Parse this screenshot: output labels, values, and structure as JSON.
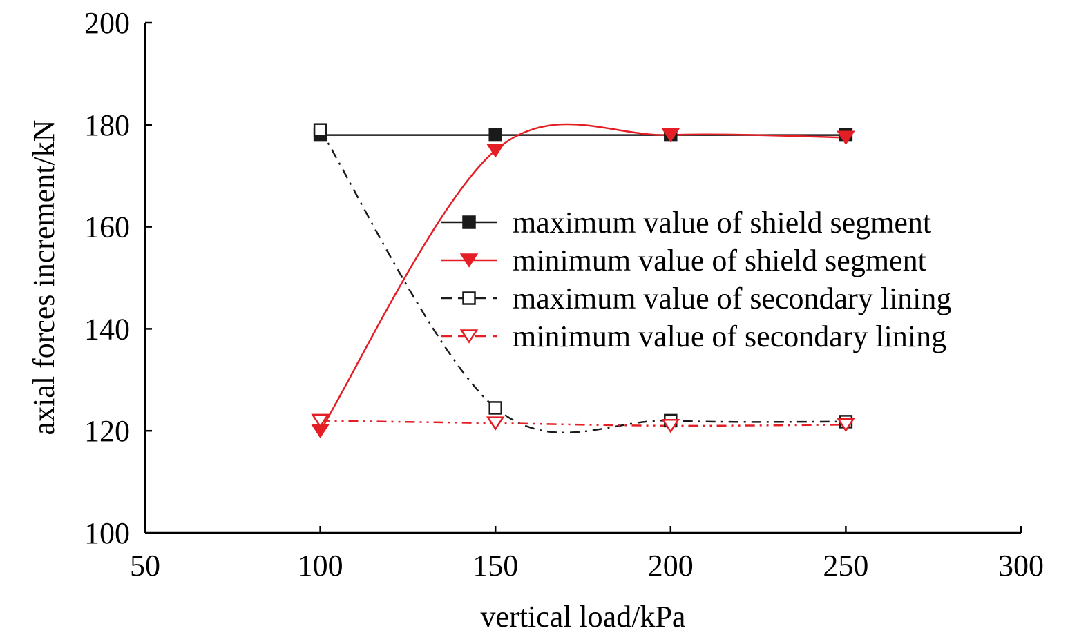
{
  "chart_data": {
    "type": "line",
    "title": "",
    "xlabel": "vertical load/kPa",
    "ylabel": "axial forces increment/kN",
    "xlim": [
      50,
      300
    ],
    "ylim": [
      100,
      200
    ],
    "xticks": [
      50,
      100,
      150,
      200,
      250,
      300
    ],
    "yticks": [
      100,
      120,
      140,
      160,
      180,
      200
    ],
    "grid": false,
    "legend_position": "center-right",
    "series": [
      {
        "name": "maximum value of shield segment",
        "color": "#1a1a1a",
        "marker": "filled-square",
        "line": "solid",
        "x": [
          100,
          150,
          200,
          250
        ],
        "y": [
          178,
          178,
          178,
          178
        ]
      },
      {
        "name": "minimum value of shield segment",
        "color": "#e31e24",
        "marker": "filled-triangle-down",
        "line": "solid",
        "x": [
          100,
          150,
          200,
          250
        ],
        "y": [
          120,
          175,
          178,
          177.5
        ]
      },
      {
        "name": "maximum value of secondary lining",
        "color": "#1a1a1a",
        "marker": "open-square",
        "line": "dash-dot",
        "x": [
          100,
          150,
          200,
          250
        ],
        "y": [
          179,
          124.5,
          122,
          121.8
        ]
      },
      {
        "name": "minimum value of secondary lining",
        "color": "#e31e24",
        "marker": "open-triangle-down",
        "line": "dash-dot-dot",
        "x": [
          100,
          150,
          200,
          250
        ],
        "y": [
          122,
          121.5,
          121,
          121.2
        ]
      }
    ]
  }
}
